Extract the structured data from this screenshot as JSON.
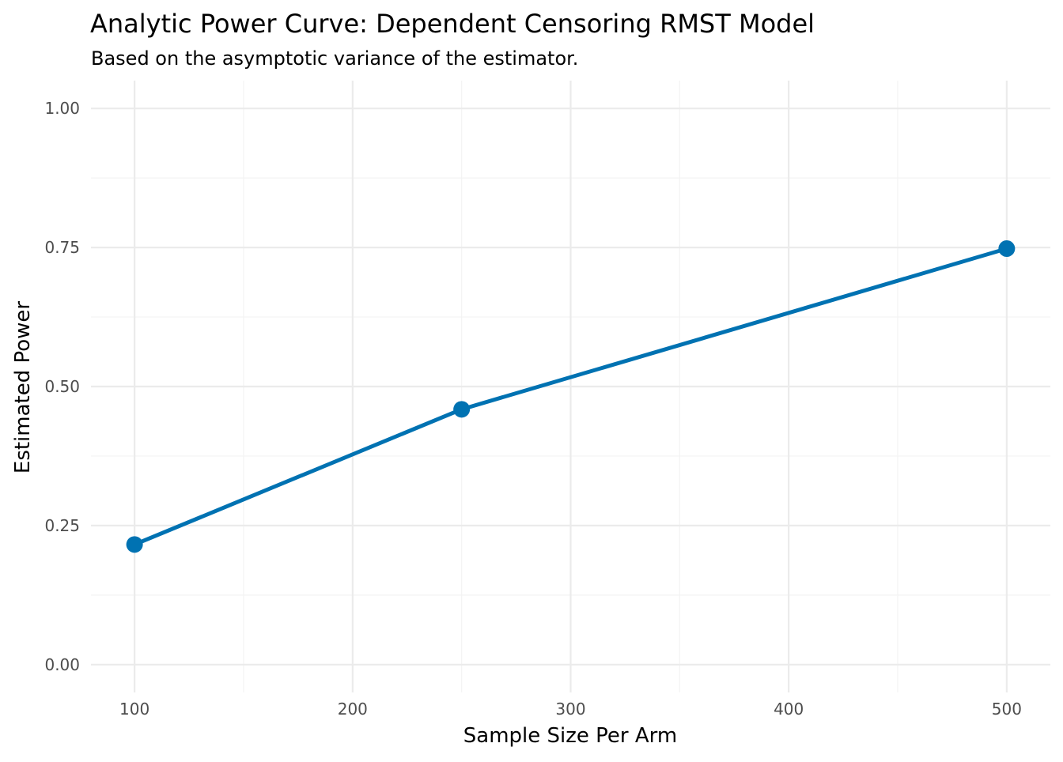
{
  "chart_data": {
    "type": "line",
    "title": "Analytic Power Curve: Dependent Censoring RMST Model",
    "subtitle": "Based on the asymptotic variance of the estimator.",
    "xlabel": "Sample Size Per Arm",
    "ylabel": "Estimated Power",
    "x": [
      100,
      250,
      500
    ],
    "series": [
      {
        "values": [
          0.216,
          0.459,
          0.748
        ],
        "color": "#0072B2",
        "markers": true
      }
    ],
    "xlim": [
      80,
      520
    ],
    "ylim": [
      -0.05,
      1.05
    ],
    "xticks": [
      100,
      200,
      300,
      400,
      500
    ],
    "xtick_labels": [
      "100",
      "200",
      "300",
      "400",
      "500"
    ],
    "yticks": [
      0,
      0.25,
      0.5,
      0.75,
      1.0
    ],
    "ytick_labels": [
      "0.00",
      "0.25",
      "0.50",
      "0.75",
      "1.00"
    ],
    "x_minor_ticks": [
      150,
      250,
      350,
      450
    ],
    "y_minor_ticks": [
      0.125,
      0.375,
      0.625,
      0.875
    ],
    "grid": true,
    "legend": "none"
  }
}
